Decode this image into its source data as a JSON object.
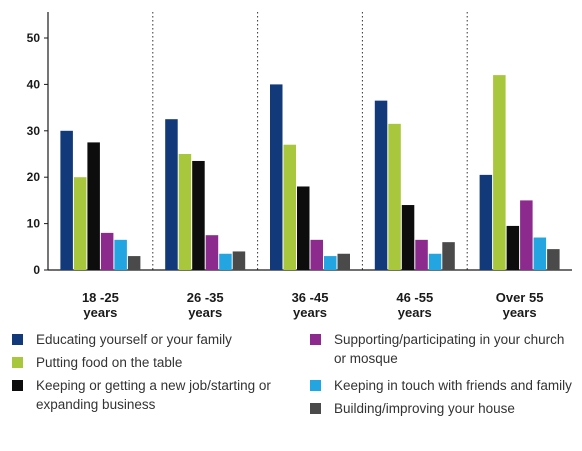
{
  "chart_data": {
    "type": "bar",
    "categories": [
      "18 -25\nyears",
      "26 -35\nyears",
      "36 -45\nyears",
      "46 -55\nyears",
      "Over 55\nyears"
    ],
    "series": [
      {
        "name": "Educating yourself or your family",
        "color": "#12397a",
        "values": [
          30,
          32.5,
          40,
          36.5,
          20.5
        ]
      },
      {
        "name": "Putting food on the table",
        "color": "#a8c73c",
        "values": [
          20,
          25,
          27,
          31.5,
          42
        ]
      },
      {
        "name": "Keeping or getting a new job/starting or expanding business",
        "color": "#0d0d0d",
        "values": [
          27.5,
          23.5,
          18,
          14,
          9.5
        ]
      },
      {
        "name": "Supporting/participating in your church or mosque",
        "color": "#8c2a8e",
        "values": [
          8,
          7.5,
          6.5,
          6.5,
          15
        ]
      },
      {
        "name": "Keeping in touch with friends and family",
        "color": "#22a5e1",
        "values": [
          6.5,
          3.5,
          3,
          3.5,
          7
        ]
      },
      {
        "name": "Building/improving your house",
        "color": "#4a4a4a",
        "values": [
          3,
          4,
          3.5,
          6,
          4.5
        ]
      }
    ],
    "y_ticks": [
      "0",
      "10",
      "20",
      "30",
      "40",
      "50"
    ],
    "ylim": [
      0,
      50
    ],
    "grid": "dotted vertical category separators",
    "legend_position": "bottom"
  }
}
